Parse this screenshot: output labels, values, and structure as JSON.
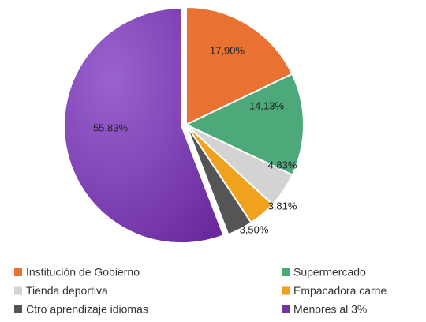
{
  "chart_data": {
    "type": "pie",
    "categories": [
      "Institución de Gobierno",
      "Supermercado",
      "Tienda deportiva",
      "Empacadora carne",
      "Ctro aprendizaje idiomas",
      "Menores al 3%"
    ],
    "values": [
      17.9,
      14.13,
      4.83,
      3.81,
      3.5,
      55.83
    ],
    "value_labels": [
      "17,90%",
      "14,13%",
      "4,83%",
      "3,81%",
      "3,50%",
      "55,83%"
    ],
    "colors": [
      "#e97132",
      "#4ea97a",
      "#d3d3d3",
      "#f0a11e",
      "#555555",
      "#7332a8"
    ],
    "legend": "bottom"
  }
}
